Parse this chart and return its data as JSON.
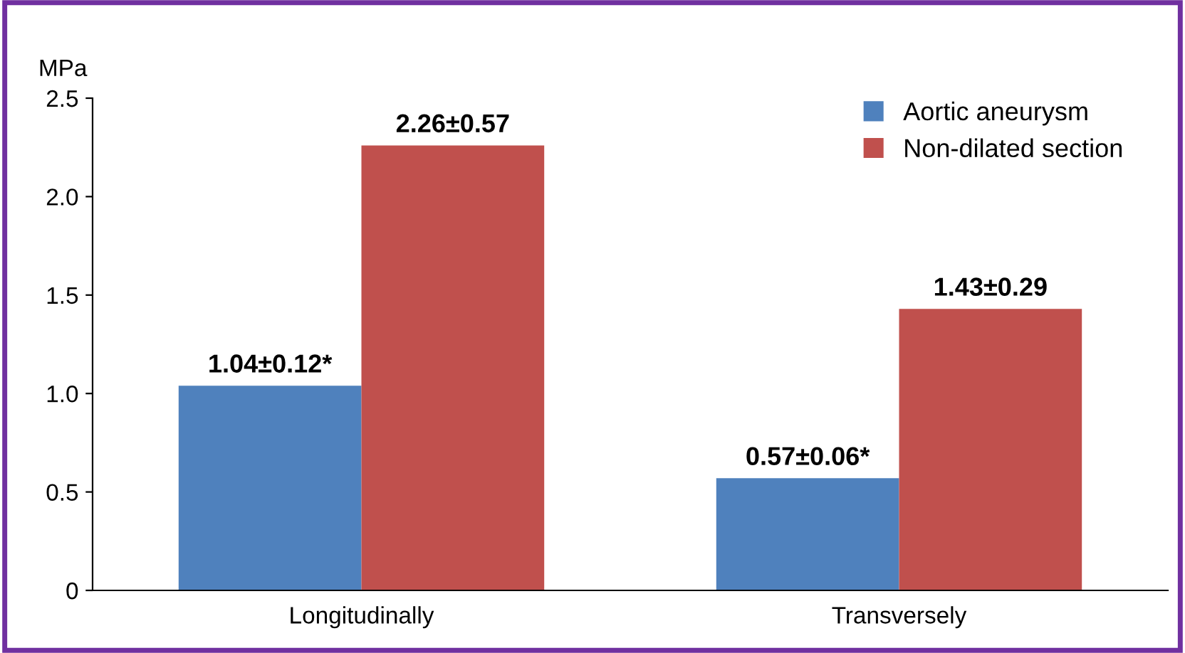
{
  "chart_data": {
    "type": "bar",
    "ylabel": "MPa",
    "categories": [
      "Longitudinally",
      "Transversely"
    ],
    "series": [
      {
        "name": "Aortic aneurysm",
        "color": "#4f81bd",
        "values": [
          1.04,
          0.57
        ],
        "value_labels": [
          "1.04±0.12*",
          "0.57±0.06*"
        ]
      },
      {
        "name": "Non-dilated section",
        "color": "#c0504d",
        "values": [
          2.26,
          1.43
        ],
        "value_labels": [
          "2.26±0.57",
          "1.43±0.29"
        ]
      }
    ],
    "ylim": [
      0,
      2.5
    ],
    "yticks": [
      0,
      0.5,
      {
        "value": 1,
        "label": "1.0"
      },
      1.5,
      {
        "value": 2,
        "label": "2.0"
      },
      2.5
    ],
    "grid": false,
    "legend": "top right"
  }
}
